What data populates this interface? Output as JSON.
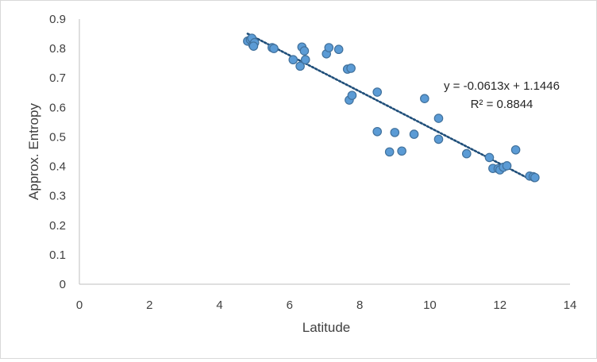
{
  "chart_data": {
    "type": "scatter",
    "xlabel": "Latitude",
    "ylabel": "Approx. Entropy",
    "xlim": [
      0,
      14
    ],
    "ylim": [
      0,
      0.9
    ],
    "x_ticks": [
      "0",
      "2",
      "4",
      "6",
      "8",
      "10",
      "12",
      "14"
    ],
    "y_ticks": [
      "0",
      "0.1",
      "0.2",
      "0.3",
      "0.4",
      "0.5",
      "0.6",
      "0.7",
      "0.8",
      "0.9"
    ],
    "grid": false,
    "legend": false,
    "marker_color": "#5b9bd5",
    "marker_edge_color": "#41719c",
    "trendline": {
      "type": "linear",
      "slope": -0.0613,
      "intercept": 1.1446,
      "color": "#1f4e79",
      "style": "dotted",
      "x_range": [
        4.8,
        13.0
      ],
      "equation_label": "y = -0.0613x + 1.1446",
      "r2_label": "R² = 0.8844"
    },
    "points": [
      {
        "x": 4.8,
        "y": 0.825
      },
      {
        "x": 4.88,
        "y": 0.83
      },
      {
        "x": 4.92,
        "y": 0.835
      },
      {
        "x": 4.95,
        "y": 0.812
      },
      {
        "x": 5.0,
        "y": 0.82
      },
      {
        "x": 4.97,
        "y": 0.808
      },
      {
        "x": 5.5,
        "y": 0.803
      },
      {
        "x": 5.55,
        "y": 0.8
      },
      {
        "x": 6.1,
        "y": 0.762
      },
      {
        "x": 6.3,
        "y": 0.74
      },
      {
        "x": 6.35,
        "y": 0.805
      },
      {
        "x": 6.42,
        "y": 0.792
      },
      {
        "x": 6.45,
        "y": 0.762
      },
      {
        "x": 7.05,
        "y": 0.782
      },
      {
        "x": 7.12,
        "y": 0.803
      },
      {
        "x": 7.4,
        "y": 0.797
      },
      {
        "x": 7.65,
        "y": 0.73
      },
      {
        "x": 7.75,
        "y": 0.733
      },
      {
        "x": 7.7,
        "y": 0.625
      },
      {
        "x": 7.78,
        "y": 0.641
      },
      {
        "x": 8.5,
        "y": 0.652
      },
      {
        "x": 8.5,
        "y": 0.518
      },
      {
        "x": 8.85,
        "y": 0.449
      },
      {
        "x": 9.0,
        "y": 0.515
      },
      {
        "x": 9.2,
        "y": 0.452
      },
      {
        "x": 9.55,
        "y": 0.509
      },
      {
        "x": 9.85,
        "y": 0.63
      },
      {
        "x": 10.25,
        "y": 0.563
      },
      {
        "x": 10.25,
        "y": 0.492
      },
      {
        "x": 11.05,
        "y": 0.443
      },
      {
        "x": 11.7,
        "y": 0.43
      },
      {
        "x": 11.8,
        "y": 0.393
      },
      {
        "x": 11.95,
        "y": 0.392
      },
      {
        "x": 12.0,
        "y": 0.388
      },
      {
        "x": 12.1,
        "y": 0.397
      },
      {
        "x": 12.2,
        "y": 0.402
      },
      {
        "x": 12.45,
        "y": 0.456
      },
      {
        "x": 12.85,
        "y": 0.367
      },
      {
        "x": 12.95,
        "y": 0.365
      },
      {
        "x": 13.0,
        "y": 0.362
      }
    ]
  }
}
